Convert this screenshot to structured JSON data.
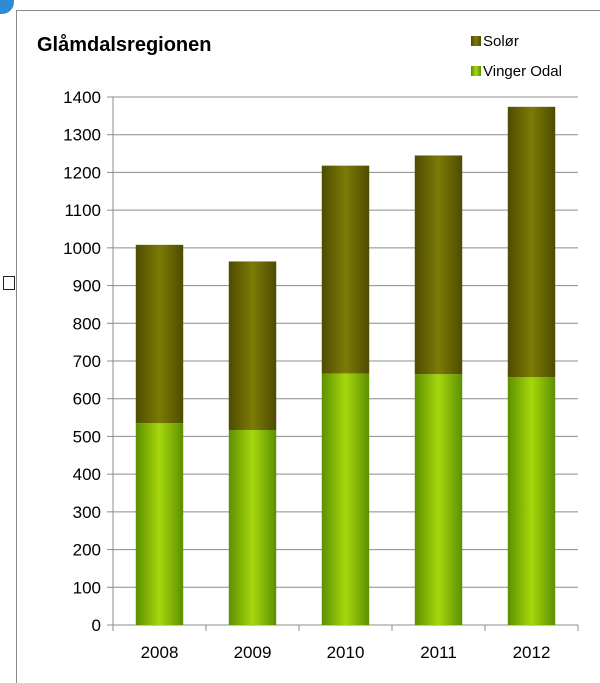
{
  "chart_data": {
    "type": "bar",
    "stacked": true,
    "title": "Glåmdalsregionen",
    "xlabel": "",
    "ylabel": "",
    "categories": [
      "2008",
      "2009",
      "2010",
      "2011",
      "2012"
    ],
    "series": [
      {
        "name": "Vinger Odal",
        "values": [
          535,
          517,
          667,
          665,
          657
        ],
        "color": "#8fc400"
      },
      {
        "name": "Solør",
        "values": [
          473,
          447,
          551,
          580,
          717
        ],
        "color": "#6e6d00"
      }
    ],
    "ylim": [
      0,
      1400
    ],
    "yticks": [
      "0",
      "100",
      "200",
      "300",
      "400",
      "500",
      "600",
      "700",
      "800",
      "900",
      "1000",
      "1100",
      "1200",
      "1300",
      "1400"
    ],
    "grid": true,
    "legend_position": "top-right"
  }
}
